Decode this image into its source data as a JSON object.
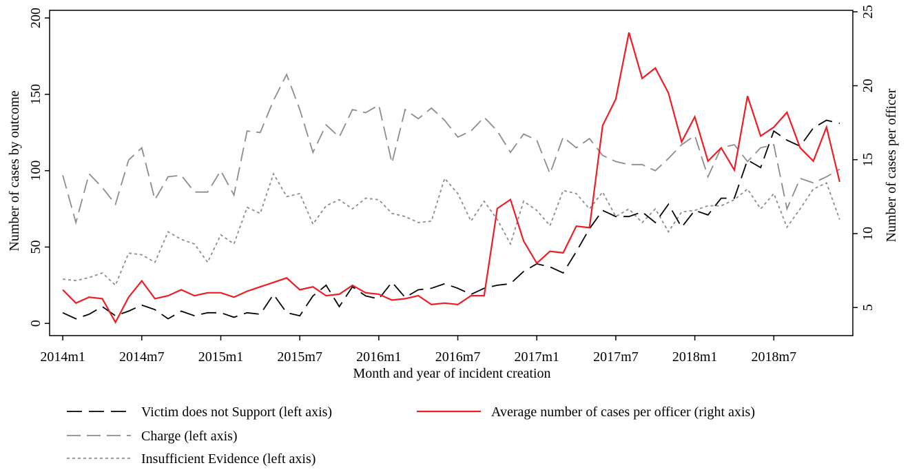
{
  "chart_data": {
    "type": "line",
    "x_label": "Month and year of incident creation",
    "y_label": "Number of cases by outcome",
    "y2_label": "Number of cases per officer",
    "x": [
      0,
      1,
      2,
      3,
      4,
      5,
      6,
      7,
      8,
      9,
      10,
      11,
      12,
      13,
      14,
      15,
      16,
      17,
      18,
      19,
      20,
      21,
      22,
      23,
      24,
      25,
      26,
      27,
      28,
      29,
      30,
      31,
      32,
      33,
      34,
      35,
      36,
      37,
      38,
      39,
      40,
      41,
      42,
      43,
      44,
      45,
      46,
      47,
      48,
      49,
      50,
      51,
      52,
      53,
      54,
      55,
      56,
      57,
      58,
      59
    ],
    "xlim": [
      -1,
      60
    ],
    "xticks": [
      {
        "value": 0,
        "label": "2014m1"
      },
      {
        "value": 6,
        "label": "2014m7"
      },
      {
        "value": 12,
        "label": "2015m1"
      },
      {
        "value": 18,
        "label": "2015m7"
      },
      {
        "value": 24,
        "label": "2016m1"
      },
      {
        "value": 30,
        "label": "2016m7"
      },
      {
        "value": 36,
        "label": "2017m1"
      },
      {
        "value": 42,
        "label": "2017m7"
      },
      {
        "value": 48,
        "label": "2018m1"
      },
      {
        "value": 54,
        "label": "2018m7"
      }
    ],
    "ylim": [
      -8,
      205
    ],
    "yticks": [
      0,
      50,
      100,
      150,
      200
    ],
    "y2lim": [
      3.1,
      25.1
    ],
    "y2ticks": [
      5,
      10,
      15,
      20,
      25
    ],
    "series": [
      {
        "name": "Victim does not Support (left axis)",
        "color": "#000000",
        "dash": "22 10",
        "axis": "y",
        "values": [
          7,
          3,
          6,
          11,
          5,
          8,
          12,
          9,
          3,
          8,
          5,
          7,
          7,
          4,
          7,
          6,
          19,
          7,
          5,
          18,
          25,
          11,
          24,
          18,
          16,
          27,
          17,
          22,
          23,
          26,
          23,
          19,
          23,
          25,
          26,
          34,
          39,
          37,
          33,
          47,
          62,
          74,
          70,
          70,
          73,
          66,
          78,
          63,
          74,
          71,
          82,
          82,
          107,
          102,
          126,
          120,
          116,
          128,
          133,
          131
        ]
      },
      {
        "name": "Average number of cases per officer (right axis)",
        "color": "#ee1c24",
        "dash": "none",
        "axis": "y2",
        "values": [
          6.2,
          5.3,
          5.7,
          5.6,
          4.0,
          5.7,
          6.8,
          5.6,
          5.8,
          6.2,
          5.8,
          6.0,
          6.0,
          5.7,
          6.1,
          6.4,
          6.7,
          7.0,
          6.2,
          6.4,
          5.8,
          5.9,
          6.5,
          6.0,
          5.9,
          5.5,
          5.6,
          5.8,
          5.2,
          5.3,
          5.2,
          5.8,
          5.8,
          11.7,
          12.3,
          9.5,
          8.0,
          8.8,
          8.7,
          10.5,
          10.4,
          17.3,
          19.1,
          23.6,
          20.5,
          21.2,
          19.5,
          16.2,
          17.9,
          14.9,
          15.8,
          14.3,
          19.3,
          16.6,
          17.2,
          18.2,
          15.8,
          14.9,
          17.2,
          13.5
        ]
      },
      {
        "name": "Charge (left axis)",
        "color": "#8c8c8c",
        "dash": "20 9",
        "axis": "y",
        "values": [
          97,
          66,
          98,
          89,
          78,
          107,
          115,
          81,
          96,
          97,
          86,
          86,
          100,
          84,
          126,
          125,
          146,
          163,
          140,
          112,
          130,
          122,
          140,
          138,
          143,
          105,
          140,
          134,
          141,
          133,
          122,
          126,
          135,
          126,
          112,
          124,
          120,
          98,
          122,
          115,
          121,
          110,
          106,
          104,
          104,
          100,
          108,
          117,
          123,
          96,
          115,
          117,
          106,
          115,
          117,
          75,
          95,
          92,
          96,
          101
        ]
      },
      {
        "name": "Insufficient Evidence (left axis)",
        "color": "#8c8c8c",
        "dash": "4 4",
        "axis": "y",
        "values": [
          29,
          28,
          30,
          33,
          25,
          46,
          45,
          40,
          60,
          55,
          52,
          40,
          58,
          52,
          76,
          72,
          98,
          83,
          85,
          65,
          77,
          81,
          75,
          82,
          81,
          72,
          70,
          66,
          67,
          95,
          85,
          67,
          80,
          68,
          52,
          80,
          74,
          64,
          87,
          85,
          75,
          86,
          70,
          75,
          66,
          75,
          60,
          73,
          74,
          77,
          77,
          81,
          88,
          75,
          85,
          63,
          75,
          88,
          92,
          68
        ]
      }
    ]
  }
}
